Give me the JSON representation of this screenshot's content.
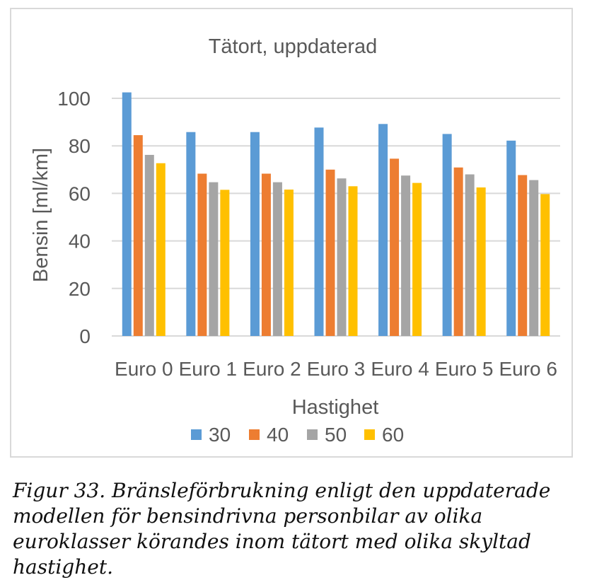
{
  "chart_data": {
    "type": "bar",
    "title": "Tätort, uppdaterad",
    "xlabel": "Hastighet",
    "ylabel": "Bensin [ml/km]",
    "ylim": [
      0,
      100
    ],
    "yticks": [
      0,
      20,
      40,
      60,
      80,
      100
    ],
    "categories": [
      "Euro 0",
      "Euro 1",
      "Euro 2",
      "Euro 3",
      "Euro 4",
      "Euro 5",
      "Euro 6"
    ],
    "series": [
      {
        "name": "30",
        "color": "#5b9bd5",
        "values": [
          102.5,
          85.8,
          85.8,
          87.7,
          89.2,
          85.0,
          82.2
        ]
      },
      {
        "name": "40",
        "color": "#ed7d31",
        "values": [
          84.5,
          68.3,
          68.3,
          70.0,
          74.6,
          70.9,
          67.7
        ]
      },
      {
        "name": "50",
        "color": "#a5a5a5",
        "values": [
          76.2,
          64.7,
          64.7,
          66.3,
          67.5,
          68.0,
          65.6
        ]
      },
      {
        "name": "60",
        "color": "#ffc000",
        "values": [
          72.7,
          61.5,
          61.6,
          63.0,
          64.4,
          62.5,
          59.7
        ]
      }
    ],
    "grid": true,
    "legend_position": "bottom"
  },
  "caption": "Figur 33. Bränsleförbrukning enligt den uppdaterade modellen för bensindrivna personbilar av olika euroklasser körandes inom tätort med olika skyltad hastighet."
}
